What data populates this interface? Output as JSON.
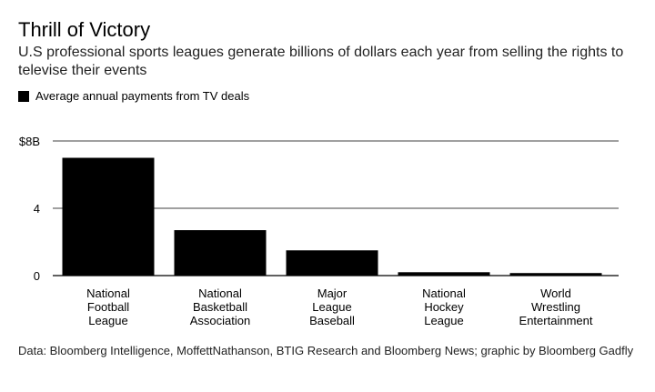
{
  "header": {
    "title": "Thrill of Victory",
    "subtitle": "U.S professional sports leagues generate billions of dollars each year from selling the rights to televise their events"
  },
  "legend": {
    "label": "Average annual payments from TV deals",
    "color": "#000000"
  },
  "footer": {
    "source": "Data: Bloomberg Intelligence, MoffettNathanson, BTIG Research and Bloomberg News; graphic by Bloomberg Gadfly"
  },
  "chart_data": {
    "type": "bar",
    "title": "Thrill of Victory",
    "ylabel": "Average annual payments from TV deals",
    "xlabel": "",
    "unit": "$ billions",
    "ylim": [
      0,
      8
    ],
    "yticks": [
      {
        "value": 0,
        "label": "0"
      },
      {
        "value": 4,
        "label": "4"
      },
      {
        "value": 8,
        "label": "$8B"
      }
    ],
    "grid": true,
    "categories": [
      [
        "National",
        "Football",
        "League"
      ],
      [
        "National",
        "Basketball",
        "Association"
      ],
      [
        "Major",
        "League",
        "Baseball"
      ],
      [
        "National",
        "Hockey",
        "League"
      ],
      [
        "World",
        "Wrestling",
        "Entertainment"
      ]
    ],
    "values": [
      7.0,
      2.7,
      1.5,
      0.2,
      0.15
    ],
    "bar_color": "#000000",
    "gridline_color": "#000000"
  }
}
